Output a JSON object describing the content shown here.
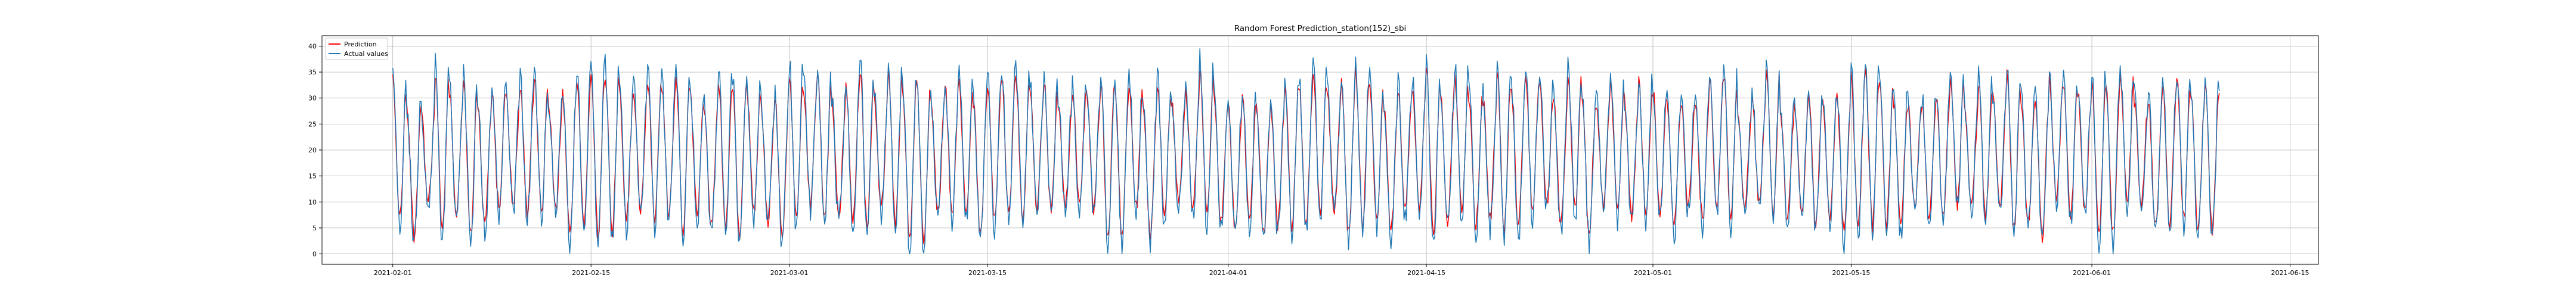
{
  "chart_data": {
    "type": "line",
    "title": "Random Forest Prediction_station(152)_sbi",
    "xlabel": "",
    "ylabel": "",
    "x_start": "2021-02-01",
    "x_end": "2021-06-10",
    "xlim": [
      "2021-01-27",
      "2021-06-17"
    ],
    "ylim": [
      -2,
      42
    ],
    "xticks": [
      "2021-02-01",
      "2021-02-15",
      "2021-03-01",
      "2021-03-15",
      "2021-04-01",
      "2021-04-15",
      "2021-05-01",
      "2021-05-15",
      "2021-06-01",
      "2021-06-15"
    ],
    "yticks": [
      0,
      5,
      10,
      15,
      20,
      25,
      30,
      35,
      40
    ],
    "grid": true,
    "legend": "upper-left",
    "series": [
      {
        "name": "Prediction",
        "color": "#ff0000"
      },
      {
        "name": "Actual values",
        "color": "#1f77b4"
      }
    ],
    "pattern": {
      "period_days": 1,
      "typical_low": 5,
      "typical_high": 32,
      "min": 0,
      "max": 40
    }
  }
}
